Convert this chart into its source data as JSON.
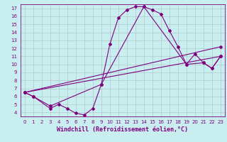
{
  "background_color": "#c8eef0",
  "line_color": "#800080",
  "grid_color": "#b0c8c8",
  "xlabel": "Windchill (Refroidissement éolien,°C)",
  "xlabel_color": "#800080",
  "xlim": [
    -0.5,
    23.5
  ],
  "ylim": [
    3.5,
    17.5
  ],
  "xticks": [
    0,
    1,
    2,
    3,
    4,
    5,
    6,
    7,
    8,
    9,
    10,
    11,
    12,
    13,
    14,
    15,
    16,
    17,
    18,
    19,
    20,
    21,
    22,
    23
  ],
  "yticks": [
    4,
    5,
    6,
    7,
    8,
    9,
    10,
    11,
    12,
    13,
    14,
    15,
    16,
    17
  ],
  "curve1_x": [
    0,
    1,
    3,
    4,
    5,
    6,
    7,
    8,
    9,
    10,
    11,
    12,
    13,
    14,
    15,
    16,
    17,
    18,
    19,
    20,
    21,
    22,
    23
  ],
  "curve1_y": [
    6.5,
    6.0,
    4.5,
    5.0,
    4.5,
    3.9,
    3.7,
    4.5,
    7.5,
    12.5,
    15.8,
    16.8,
    17.2,
    17.2,
    16.8,
    16.3,
    14.2,
    12.2,
    10.0,
    11.3,
    10.2,
    9.5,
    11.0
  ],
  "curve2_x": [
    0,
    1,
    3,
    9,
    14,
    19,
    21,
    22,
    23
  ],
  "curve2_y": [
    6.5,
    6.0,
    4.8,
    7.5,
    17.2,
    10.0,
    10.2,
    9.5,
    11.0
  ],
  "curve3_x": [
    0,
    23
  ],
  "curve3_y": [
    6.5,
    11.0
  ],
  "curve4_x": [
    0,
    23
  ],
  "curve4_y": [
    6.5,
    12.2
  ],
  "marker": "D",
  "markersize": 2.0,
  "linewidth": 0.8,
  "tick_fontsize": 5.0,
  "xlabel_fontsize": 6.0
}
